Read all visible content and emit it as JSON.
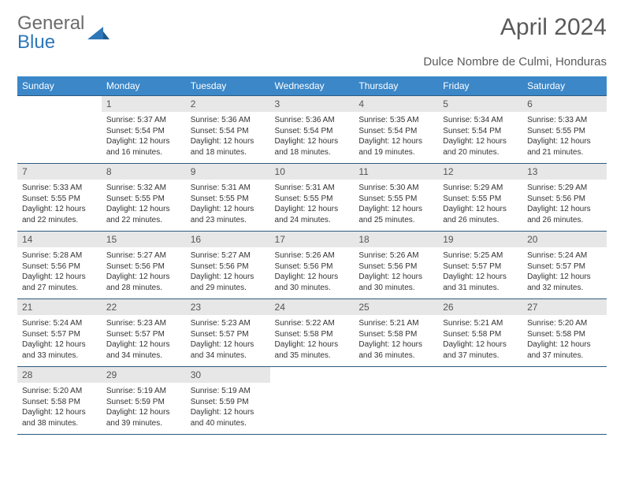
{
  "brand": {
    "part1": "General",
    "part2": "Blue"
  },
  "title": "April 2024",
  "location": "Dulce Nombre de Culmi, Honduras",
  "styling": {
    "header_bg": "#3b87c8",
    "header_fg": "#ffffff",
    "daynum_bg": "#e7e7e7",
    "daynum_fg": "#555555",
    "rule_color": "#2e5a7f",
    "body_text": "#333333",
    "title_color": "#5a5a5a",
    "logo_gray": "#6b6b6b",
    "logo_blue": "#2e77b8",
    "fontsize_title": 30,
    "fontsize_subtitle": 15,
    "fontsize_header": 12,
    "fontsize_daynum": 12,
    "fontsize_body": 10
  },
  "days_of_week": [
    "Sunday",
    "Monday",
    "Tuesday",
    "Wednesday",
    "Thursday",
    "Friday",
    "Saturday"
  ],
  "grid": [
    [
      null,
      {
        "n": "1",
        "sr": "Sunrise: 5:37 AM",
        "ss": "Sunset: 5:54 PM",
        "dl": "Daylight: 12 hours and 16 minutes."
      },
      {
        "n": "2",
        "sr": "Sunrise: 5:36 AM",
        "ss": "Sunset: 5:54 PM",
        "dl": "Daylight: 12 hours and 18 minutes."
      },
      {
        "n": "3",
        "sr": "Sunrise: 5:36 AM",
        "ss": "Sunset: 5:54 PM",
        "dl": "Daylight: 12 hours and 18 minutes."
      },
      {
        "n": "4",
        "sr": "Sunrise: 5:35 AM",
        "ss": "Sunset: 5:54 PM",
        "dl": "Daylight: 12 hours and 19 minutes."
      },
      {
        "n": "5",
        "sr": "Sunrise: 5:34 AM",
        "ss": "Sunset: 5:54 PM",
        "dl": "Daylight: 12 hours and 20 minutes."
      },
      {
        "n": "6",
        "sr": "Sunrise: 5:33 AM",
        "ss": "Sunset: 5:55 PM",
        "dl": "Daylight: 12 hours and 21 minutes."
      }
    ],
    [
      {
        "n": "7",
        "sr": "Sunrise: 5:33 AM",
        "ss": "Sunset: 5:55 PM",
        "dl": "Daylight: 12 hours and 22 minutes."
      },
      {
        "n": "8",
        "sr": "Sunrise: 5:32 AM",
        "ss": "Sunset: 5:55 PM",
        "dl": "Daylight: 12 hours and 22 minutes."
      },
      {
        "n": "9",
        "sr": "Sunrise: 5:31 AM",
        "ss": "Sunset: 5:55 PM",
        "dl": "Daylight: 12 hours and 23 minutes."
      },
      {
        "n": "10",
        "sr": "Sunrise: 5:31 AM",
        "ss": "Sunset: 5:55 PM",
        "dl": "Daylight: 12 hours and 24 minutes."
      },
      {
        "n": "11",
        "sr": "Sunrise: 5:30 AM",
        "ss": "Sunset: 5:55 PM",
        "dl": "Daylight: 12 hours and 25 minutes."
      },
      {
        "n": "12",
        "sr": "Sunrise: 5:29 AM",
        "ss": "Sunset: 5:55 PM",
        "dl": "Daylight: 12 hours and 26 minutes."
      },
      {
        "n": "13",
        "sr": "Sunrise: 5:29 AM",
        "ss": "Sunset: 5:56 PM",
        "dl": "Daylight: 12 hours and 26 minutes."
      }
    ],
    [
      {
        "n": "14",
        "sr": "Sunrise: 5:28 AM",
        "ss": "Sunset: 5:56 PM",
        "dl": "Daylight: 12 hours and 27 minutes."
      },
      {
        "n": "15",
        "sr": "Sunrise: 5:27 AM",
        "ss": "Sunset: 5:56 PM",
        "dl": "Daylight: 12 hours and 28 minutes."
      },
      {
        "n": "16",
        "sr": "Sunrise: 5:27 AM",
        "ss": "Sunset: 5:56 PM",
        "dl": "Daylight: 12 hours and 29 minutes."
      },
      {
        "n": "17",
        "sr": "Sunrise: 5:26 AM",
        "ss": "Sunset: 5:56 PM",
        "dl": "Daylight: 12 hours and 30 minutes."
      },
      {
        "n": "18",
        "sr": "Sunrise: 5:26 AM",
        "ss": "Sunset: 5:56 PM",
        "dl": "Daylight: 12 hours and 30 minutes."
      },
      {
        "n": "19",
        "sr": "Sunrise: 5:25 AM",
        "ss": "Sunset: 5:57 PM",
        "dl": "Daylight: 12 hours and 31 minutes."
      },
      {
        "n": "20",
        "sr": "Sunrise: 5:24 AM",
        "ss": "Sunset: 5:57 PM",
        "dl": "Daylight: 12 hours and 32 minutes."
      }
    ],
    [
      {
        "n": "21",
        "sr": "Sunrise: 5:24 AM",
        "ss": "Sunset: 5:57 PM",
        "dl": "Daylight: 12 hours and 33 minutes."
      },
      {
        "n": "22",
        "sr": "Sunrise: 5:23 AM",
        "ss": "Sunset: 5:57 PM",
        "dl": "Daylight: 12 hours and 34 minutes."
      },
      {
        "n": "23",
        "sr": "Sunrise: 5:23 AM",
        "ss": "Sunset: 5:57 PM",
        "dl": "Daylight: 12 hours and 34 minutes."
      },
      {
        "n": "24",
        "sr": "Sunrise: 5:22 AM",
        "ss": "Sunset: 5:58 PM",
        "dl": "Daylight: 12 hours and 35 minutes."
      },
      {
        "n": "25",
        "sr": "Sunrise: 5:21 AM",
        "ss": "Sunset: 5:58 PM",
        "dl": "Daylight: 12 hours and 36 minutes."
      },
      {
        "n": "26",
        "sr": "Sunrise: 5:21 AM",
        "ss": "Sunset: 5:58 PM",
        "dl": "Daylight: 12 hours and 37 minutes."
      },
      {
        "n": "27",
        "sr": "Sunrise: 5:20 AM",
        "ss": "Sunset: 5:58 PM",
        "dl": "Daylight: 12 hours and 37 minutes."
      }
    ],
    [
      {
        "n": "28",
        "sr": "Sunrise: 5:20 AM",
        "ss": "Sunset: 5:58 PM",
        "dl": "Daylight: 12 hours and 38 minutes."
      },
      {
        "n": "29",
        "sr": "Sunrise: 5:19 AM",
        "ss": "Sunset: 5:59 PM",
        "dl": "Daylight: 12 hours and 39 minutes."
      },
      {
        "n": "30",
        "sr": "Sunrise: 5:19 AM",
        "ss": "Sunset: 5:59 PM",
        "dl": "Daylight: 12 hours and 40 minutes."
      },
      null,
      null,
      null,
      null
    ]
  ]
}
